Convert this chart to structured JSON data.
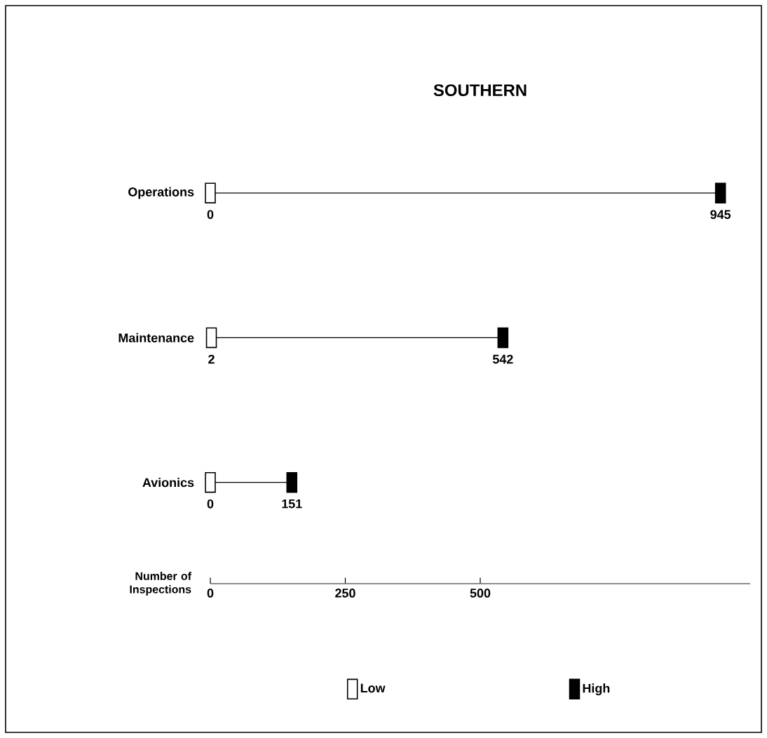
{
  "chart_data": {
    "type": "scatter",
    "title": "SOUTHERN",
    "orientation": "horizontal",
    "categories": [
      "Operations",
      "Maintenance",
      "Avionics"
    ],
    "series": [
      {
        "name": "Low",
        "color": "#ffffff",
        "values": [
          0,
          2,
          0
        ]
      },
      {
        "name": "High",
        "color": "#000000",
        "values": [
          945,
          542,
          151
        ]
      }
    ],
    "xlabel": "Number of Inspections",
    "xlim": [
      0,
      1000
    ],
    "xticks": [
      0,
      250,
      500
    ],
    "marker": "square",
    "data_labels": true,
    "legend": "bottom"
  }
}
